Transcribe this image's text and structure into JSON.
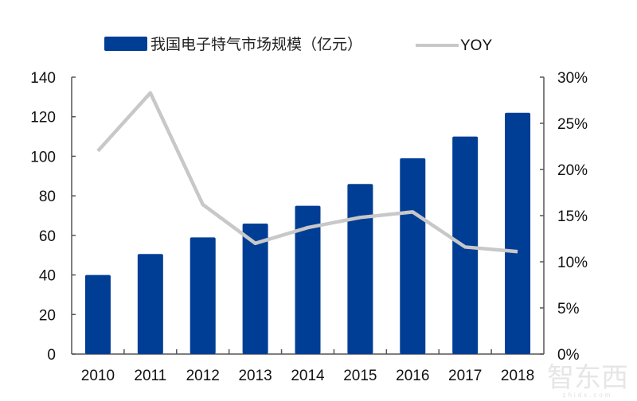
{
  "chart_data": {
    "type": "bar",
    "title": "",
    "categories": [
      "2010",
      "2011",
      "2012",
      "2013",
      "2014",
      "2015",
      "2016",
      "2017",
      "2018"
    ],
    "series": [
      {
        "name": "我国电子特气市场规模（亿元）",
        "type": "bar",
        "axis": "left",
        "color": "#003e96",
        "values": [
          40,
          50.6,
          59,
          66,
          75,
          86,
          99,
          110,
          122
        ]
      },
      {
        "name": "YOY",
        "type": "line",
        "axis": "right",
        "color": "#c8c8c8",
        "values": [
          0.22,
          0.283,
          0.162,
          0.12,
          0.137,
          0.148,
          0.154,
          0.116,
          0.111
        ]
      }
    ],
    "left_axis": {
      "ylim": [
        0,
        140
      ],
      "ticks": [
        "0",
        "20",
        "40",
        "60",
        "80",
        "100",
        "120",
        "140"
      ]
    },
    "right_axis": {
      "ylim": [
        0,
        0.3
      ],
      "ticks": [
        "0%",
        "5%",
        "10%",
        "15%",
        "20%",
        "25%",
        "30%"
      ]
    },
    "xlabel": "",
    "ylabel": "",
    "grid": false,
    "legend_position": "top"
  },
  "legend": {
    "bar_label": "我国电子特气市场规模（亿元）",
    "line_label": "YOY"
  },
  "watermark": {
    "logo": "智东西",
    "url": "zhidx.com"
  }
}
